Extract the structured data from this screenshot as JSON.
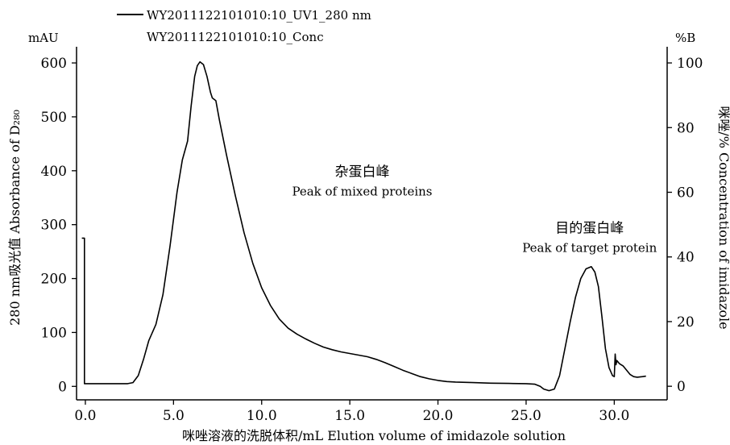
{
  "chart_data": {
    "type": "line",
    "legend": {
      "placement": "top-left",
      "entries": [
        {
          "label": "WY2011122101010:10_UV1_280 nm",
          "style": "solid-line"
        },
        {
          "label": "WY2011122101010:10_Conc",
          "style": "none"
        }
      ]
    },
    "x_axis": {
      "label": "咪唑溶液的洗脱体积/mL  Elution volume of imidazole solution",
      "range": [
        -0.5,
        33.0
      ],
      "ticks": [
        0.0,
        5.0,
        10.0,
        15.0,
        20.0,
        25.0,
        30.0
      ],
      "tick_labels": [
        "0.0",
        "5.0",
        "10.0",
        "15.0",
        "20.0",
        "25.0",
        "30.0"
      ]
    },
    "y_left": {
      "unit": "mAU",
      "label": "280 nm吸光值  Absorbance of D₂₈₀",
      "range": [
        -25,
        630
      ],
      "ticks": [
        0,
        100,
        200,
        300,
        400,
        500,
        600
      ],
      "tick_labels": [
        "0",
        "100",
        "200",
        "300",
        "400",
        "500",
        "600"
      ]
    },
    "y_right": {
      "unit": "%B",
      "label": "咪唑/% Concentration of  imidazole",
      "range": [
        -4.2,
        105.0
      ],
      "ticks": [
        0,
        20,
        40,
        60,
        80,
        100
      ],
      "tick_labels": [
        "0",
        "20",
        "40",
        "60",
        "80",
        "100"
      ]
    },
    "annotations": [
      {
        "id": "mixed",
        "zh": "杂蛋白峰",
        "en": "Peak of mixed proteins",
        "x": 15.7,
        "y": 390
      },
      {
        "id": "target",
        "zh": "目的蛋白峰",
        "en": "Peak of target protein",
        "x": 28.6,
        "y": 285
      }
    ],
    "series": [
      {
        "legend_index": 0,
        "axis": "left",
        "color": "#000000",
        "points": [
          [
            -0.2,
            275
          ],
          [
            -0.05,
            275
          ],
          [
            -0.05,
            5
          ],
          [
            0.5,
            5
          ],
          [
            1.5,
            5
          ],
          [
            2.4,
            5
          ],
          [
            2.7,
            7
          ],
          [
            3.0,
            20
          ],
          [
            3.3,
            50
          ],
          [
            3.6,
            85
          ],
          [
            4.0,
            115
          ],
          [
            4.4,
            170
          ],
          [
            4.8,
            260
          ],
          [
            5.2,
            360
          ],
          [
            5.5,
            420
          ],
          [
            5.8,
            455
          ],
          [
            6.0,
            520
          ],
          [
            6.2,
            575
          ],
          [
            6.35,
            595
          ],
          [
            6.5,
            602
          ],
          [
            6.7,
            597
          ],
          [
            6.9,
            575
          ],
          [
            7.1,
            545
          ],
          [
            7.2,
            535
          ],
          [
            7.4,
            530
          ],
          [
            7.6,
            495
          ],
          [
            8.0,
            430
          ],
          [
            8.5,
            355
          ],
          [
            9.0,
            285
          ],
          [
            9.5,
            228
          ],
          [
            10.0,
            183
          ],
          [
            10.5,
            150
          ],
          [
            11.0,
            125
          ],
          [
            11.5,
            108
          ],
          [
            12.0,
            97
          ],
          [
            12.5,
            88
          ],
          [
            13.0,
            80
          ],
          [
            13.5,
            73
          ],
          [
            14.0,
            68
          ],
          [
            14.5,
            64
          ],
          [
            15.0,
            61
          ],
          [
            15.5,
            58
          ],
          [
            16.0,
            55
          ],
          [
            16.5,
            50
          ],
          [
            17.0,
            44
          ],
          [
            17.5,
            37
          ],
          [
            18.0,
            30
          ],
          [
            18.5,
            24
          ],
          [
            19.0,
            18
          ],
          [
            19.5,
            14
          ],
          [
            20.0,
            11
          ],
          [
            20.5,
            9
          ],
          [
            21.0,
            8
          ],
          [
            22.0,
            7
          ],
          [
            23.0,
            6
          ],
          [
            24.0,
            5.5
          ],
          [
            25.0,
            5
          ],
          [
            25.5,
            4
          ],
          [
            25.8,
            0
          ],
          [
            26.0,
            -5
          ],
          [
            26.3,
            -8
          ],
          [
            26.6,
            -5
          ],
          [
            26.9,
            20
          ],
          [
            27.2,
            70
          ],
          [
            27.5,
            120
          ],
          [
            27.8,
            165
          ],
          [
            28.1,
            200
          ],
          [
            28.4,
            218
          ],
          [
            28.7,
            222
          ],
          [
            28.9,
            212
          ],
          [
            29.1,
            185
          ],
          [
            29.3,
            130
          ],
          [
            29.5,
            70
          ],
          [
            29.7,
            35
          ],
          [
            29.9,
            20
          ],
          [
            30.0,
            18
          ],
          [
            30.05,
            60
          ],
          [
            30.1,
            40
          ],
          [
            30.15,
            48
          ],
          [
            30.3,
            42
          ],
          [
            30.5,
            38
          ],
          [
            30.7,
            30
          ],
          [
            30.9,
            22
          ],
          [
            31.1,
            18
          ],
          [
            31.3,
            17
          ],
          [
            31.6,
            18
          ],
          [
            31.8,
            19
          ]
        ]
      }
    ]
  }
}
